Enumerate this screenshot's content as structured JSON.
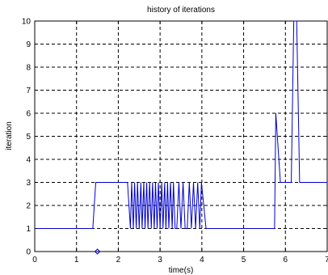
{
  "chart_data": {
    "type": "line",
    "title": "history of iterations",
    "xlabel": "time(s)",
    "ylabel": "iteration",
    "xlim": [
      0,
      7
    ],
    "ylim": [
      0,
      10
    ],
    "grid": true,
    "colors": {
      "series": "#0000cc",
      "axis": "#000000",
      "grid": "#000000"
    },
    "x_ticks": [
      "0",
      "1",
      "2",
      "3",
      "4",
      "5",
      "6",
      "7"
    ],
    "y_ticks": [
      "0",
      "1",
      "2",
      "3",
      "4",
      "5",
      "6",
      "7",
      "8",
      "9",
      "10"
    ],
    "marker": {
      "x": 1.5,
      "y": 0
    },
    "series": [
      {
        "x": [
          0,
          1.39,
          1.46,
          2.22,
          2.29,
          2.32,
          2.36,
          2.39,
          2.43,
          2.46,
          2.5,
          2.54,
          2.57,
          2.61,
          2.64,
          2.68,
          2.71,
          2.75,
          2.79,
          2.82,
          2.86,
          2.89,
          2.93,
          2.96,
          3.0,
          3.04,
          3.07,
          3.11,
          3.14,
          3.18,
          3.21,
          3.25,
          3.29,
          3.32,
          3.36,
          3.4,
          3.45,
          3.5,
          3.55,
          3.6,
          3.65,
          3.7,
          3.75,
          3.8,
          3.85,
          3.9,
          3.95,
          3.99,
          4.1,
          5.74,
          5.77,
          5.88,
          6.14,
          6.2,
          6.27,
          6.34,
          7.0
        ],
        "y": [
          1,
          1,
          3,
          3,
          1,
          3,
          1,
          3,
          1,
          3,
          1,
          3,
          1,
          3,
          1,
          3,
          1,
          3,
          1,
          3,
          1,
          3,
          1,
          3,
          1,
          3,
          1,
          3,
          1,
          3,
          1,
          3,
          1,
          3,
          1,
          1,
          3,
          1,
          3,
          1,
          1,
          3,
          1,
          3,
          1,
          3,
          1,
          3,
          1,
          1,
          6,
          3,
          3,
          10,
          10,
          3,
          3
        ]
      }
    ]
  }
}
